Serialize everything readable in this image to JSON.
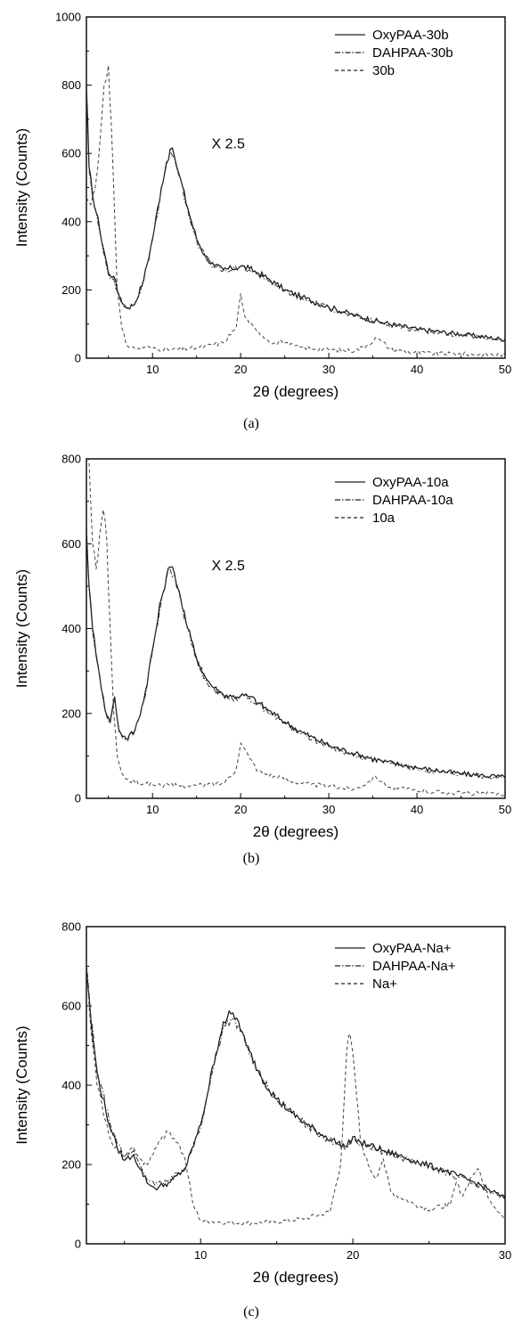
{
  "figure": {
    "panels": [
      {
        "caption": "(a)",
        "legend_items": [
          {
            "label": "OxyPAA-30b",
            "style": "solid"
          },
          {
            "label": "DAHPAA-30b",
            "style": "dashdot"
          },
          {
            "label": "30b",
            "style": "dashed"
          }
        ],
        "annotation": "X 2.5"
      },
      {
        "caption": "(b)",
        "legend_items": [
          {
            "label": "OxyPAA-10a",
            "style": "solid"
          },
          {
            "label": "DAHPAA-10a",
            "style": "dashdot"
          },
          {
            "label": "10a",
            "style": "dashed"
          }
        ],
        "annotation": "X 2.5"
      },
      {
        "caption": "(c)",
        "legend_items": [
          {
            "label": "OxyPAA-Na+",
            "style": "solid"
          },
          {
            "label": "DAHPAA-Na+",
            "style": "dashdot"
          },
          {
            "label": "Na+",
            "style": "dashed"
          }
        ],
        "annotation": ""
      }
    ]
  },
  "chart_data": [
    {
      "type": "line",
      "title": "",
      "xlabel": "2θ (degrees)",
      "ylabel": "Intensity (Counts)",
      "xlim": [
        2.5,
        50
      ],
      "ylim": [
        0,
        1000
      ],
      "xticks": [
        10,
        20,
        30,
        40,
        50
      ],
      "yticks": [
        0,
        200,
        400,
        600,
        800,
        1000
      ],
      "legend": "top-right",
      "grid": false,
      "annotations": [
        {
          "text": "X 2.5",
          "x": 16.7,
          "y": 615
        }
      ],
      "series": [
        {
          "name": "OxyPAA-30b",
          "style": "solid",
          "color": "#111111",
          "x": [
            2.5,
            2.8,
            3.2,
            4,
            5,
            5.6,
            6,
            6.6,
            7.2,
            8,
            9,
            10,
            11,
            11.6,
            12,
            12.5,
            13,
            14,
            15,
            16,
            17,
            18,
            19,
            20,
            21,
            22,
            23,
            24,
            25,
            27,
            30,
            33,
            36,
            40,
            45,
            50
          ],
          "y": [
            800,
            560,
            480,
            380,
            250,
            240,
            200,
            160,
            148,
            160,
            230,
            350,
            500,
            575,
            612,
            590,
            540,
            440,
            350,
            300,
            270,
            260,
            262,
            270,
            262,
            250,
            235,
            218,
            200,
            178,
            150,
            125,
            105,
            85,
            70,
            55
          ]
        },
        {
          "name": "DAHPAA-30b",
          "style": "dashdot",
          "color": "#333333",
          "x": [
            2.5,
            2.8,
            3.2,
            4,
            5,
            5.6,
            6,
            6.6,
            7.2,
            8,
            9,
            10,
            11,
            11.6,
            12,
            12.5,
            13,
            14,
            15,
            16,
            17,
            18,
            19,
            20,
            21,
            22,
            23,
            24,
            25,
            27,
            30,
            33,
            36,
            40,
            45,
            50
          ],
          "y": [
            790,
            550,
            470,
            372,
            245,
            232,
            196,
            156,
            145,
            157,
            225,
            345,
            495,
            568,
            605,
            585,
            535,
            435,
            345,
            296,
            266,
            256,
            258,
            266,
            258,
            246,
            231,
            214,
            197,
            175,
            147,
            122,
            102,
            83,
            68,
            53
          ]
        },
        {
          "name": "30b",
          "style": "dashed",
          "color": "#444444",
          "x": [
            2.5,
            3,
            3.5,
            4,
            4.5,
            5,
            5.3,
            5.7,
            6,
            6.5,
            7,
            8,
            9,
            9.5,
            10,
            12,
            15,
            18,
            19.5,
            20,
            20.5,
            21,
            22,
            23,
            24,
            24.6,
            25.5,
            27,
            30,
            33,
            34.5,
            35.3,
            36,
            37,
            40,
            45,
            50
          ],
          "y": [
            470,
            450,
            500,
            620,
            800,
            858,
            700,
            420,
            200,
            90,
            40,
            28,
            30,
            35,
            28,
            25,
            30,
            45,
            90,
            190,
            120,
            100,
            80,
            55,
            40,
            52,
            38,
            32,
            25,
            22,
            40,
            60,
            50,
            25,
            15,
            12,
            10
          ]
        }
      ]
    },
    {
      "type": "line",
      "title": "",
      "xlabel": "2θ (degrees)",
      "ylabel": "Intensity (Counts)",
      "xlim": [
        2.5,
        50
      ],
      "ylim": [
        0,
        800
      ],
      "xticks": [
        10,
        20,
        30,
        40,
        50
      ],
      "yticks": [
        0,
        200,
        400,
        600,
        800
      ],
      "legend": "top-right",
      "grid": false,
      "annotations": [
        {
          "text": "X 2.5",
          "x": 16.7,
          "y": 538
        }
      ],
      "series": [
        {
          "name": "OxyPAA-10a",
          "style": "solid",
          "color": "#111111",
          "x": [
            2.5,
            2.8,
            3.2,
            4,
            4.6,
            5.2,
            5.7,
            6.2,
            7,
            8,
            9,
            10,
            11,
            11.6,
            12,
            12.5,
            13,
            14,
            15,
            16,
            17,
            18,
            19,
            20,
            21,
            22,
            23,
            25,
            27,
            30,
            33,
            36,
            40,
            45,
            50
          ],
          "y": [
            640,
            500,
            400,
            290,
            210,
            180,
            240,
            160,
            140,
            160,
            230,
            350,
            470,
            525,
            545,
            530,
            490,
            400,
            330,
            285,
            260,
            245,
            240,
            242,
            240,
            225,
            210,
            180,
            155,
            125,
            105,
            88,
            72,
            58,
            50
          ]
        },
        {
          "name": "DAHPAA-10a",
          "style": "dashdot",
          "color": "#333333",
          "x": [
            2.5,
            2.8,
            3.2,
            4,
            4.6,
            5.2,
            5.7,
            6.2,
            7,
            8,
            9,
            10,
            11,
            11.6,
            12,
            12.5,
            13,
            14,
            15,
            16,
            17,
            18,
            19,
            20,
            21,
            22,
            23,
            25,
            27,
            30,
            33,
            36,
            40,
            45,
            50
          ],
          "y": [
            630,
            492,
            394,
            285,
            207,
            177,
            236,
            157,
            137,
            157,
            226,
            345,
            465,
            520,
            540,
            526,
            486,
            396,
            326,
            282,
            257,
            242,
            237,
            239,
            237,
            222,
            207,
            177,
            152,
            122,
            102,
            86,
            70,
            56,
            48
          ]
        },
        {
          "name": "10a",
          "style": "dashed",
          "color": "#444444",
          "x": [
            2.5,
            2.8,
            3.2,
            3.6,
            4,
            4.4,
            4.8,
            5.2,
            5.6,
            6,
            6.5,
            7,
            8,
            9,
            10,
            12,
            15,
            18,
            19.5,
            20,
            20.5,
            21,
            22,
            24,
            26,
            28,
            30,
            33,
            34.6,
            35.3,
            36,
            37,
            40,
            45,
            50
          ],
          "y": [
            800,
            790,
            600,
            540,
            620,
            680,
            610,
            400,
            200,
            100,
            60,
            45,
            38,
            35,
            33,
            30,
            30,
            35,
            70,
            130,
            115,
            95,
            65,
            50,
            40,
            33,
            28,
            22,
            40,
            52,
            40,
            25,
            18,
            12,
            10
          ]
        }
      ]
    },
    {
      "type": "line",
      "title": "",
      "xlabel": "2θ (degrees)",
      "ylabel": "Intensity (Counts)",
      "xlim": [
        2.5,
        30
      ],
      "ylim": [
        0,
        800
      ],
      "xticks": [
        10,
        20,
        30
      ],
      "yticks": [
        0,
        200,
        400,
        600,
        800
      ],
      "legend": "top-right",
      "grid": false,
      "annotations": [],
      "series": [
        {
          "name": "OxyPAA-Na+",
          "style": "solid",
          "color": "#111111",
          "x": [
            2.5,
            2.8,
            3.2,
            4,
            4.5,
            5,
            5.6,
            6,
            6.6,
            7,
            8,
            9,
            10,
            11,
            11.5,
            12,
            12.5,
            13,
            14,
            15,
            16,
            17,
            18,
            19,
            19.6,
            20,
            20.5,
            21,
            22,
            24,
            26,
            28,
            30
          ],
          "y": [
            700,
            560,
            430,
            300,
            245,
            210,
            225,
            190,
            150,
            140,
            155,
            190,
            300,
            480,
            560,
            580,
            560,
            500,
            420,
            365,
            330,
            300,
            275,
            255,
            245,
            270,
            255,
            250,
            235,
            210,
            185,
            155,
            115
          ]
        },
        {
          "name": "DAHPAA-Na+",
          "style": "dashdot",
          "color": "#333333",
          "x": [
            2.5,
            2.8,
            3.2,
            4,
            4.5,
            5,
            5.6,
            6,
            6.6,
            7,
            8,
            9,
            10,
            11,
            11.5,
            12,
            12.5,
            13,
            14,
            15,
            16,
            17,
            18,
            19,
            19.6,
            20,
            20.5,
            21,
            22,
            24,
            26,
            28,
            30
          ],
          "y": [
            710,
            570,
            440,
            310,
            255,
            220,
            235,
            200,
            160,
            148,
            160,
            195,
            295,
            470,
            548,
            568,
            552,
            495,
            418,
            362,
            328,
            298,
            272,
            252,
            242,
            262,
            252,
            246,
            232,
            207,
            182,
            152,
            112
          ]
        },
        {
          "name": "Na+",
          "style": "dashed",
          "color": "#444444",
          "x": [
            2.5,
            2.8,
            3.2,
            4,
            5,
            5.6,
            6,
            6.5,
            7,
            7.5,
            8,
            8.5,
            9,
            9.5,
            10,
            11,
            13,
            15,
            17,
            18.5,
            19.2,
            19.6,
            19.8,
            20.1,
            20.5,
            21,
            21.5,
            22,
            22.5,
            24,
            25,
            26.4,
            26.8,
            27.2,
            27.8,
            28.2,
            29,
            30
          ],
          "y": [
            690,
            540,
            400,
            270,
            210,
            245,
            215,
            200,
            240,
            272,
            280,
            255,
            210,
            100,
            58,
            55,
            52,
            55,
            65,
            80,
            200,
            490,
            530,
            440,
            260,
            200,
            165,
            215,
            130,
            100,
            85,
            100,
            155,
            120,
            170,
            190,
            110,
            60
          ]
        }
      ]
    }
  ]
}
